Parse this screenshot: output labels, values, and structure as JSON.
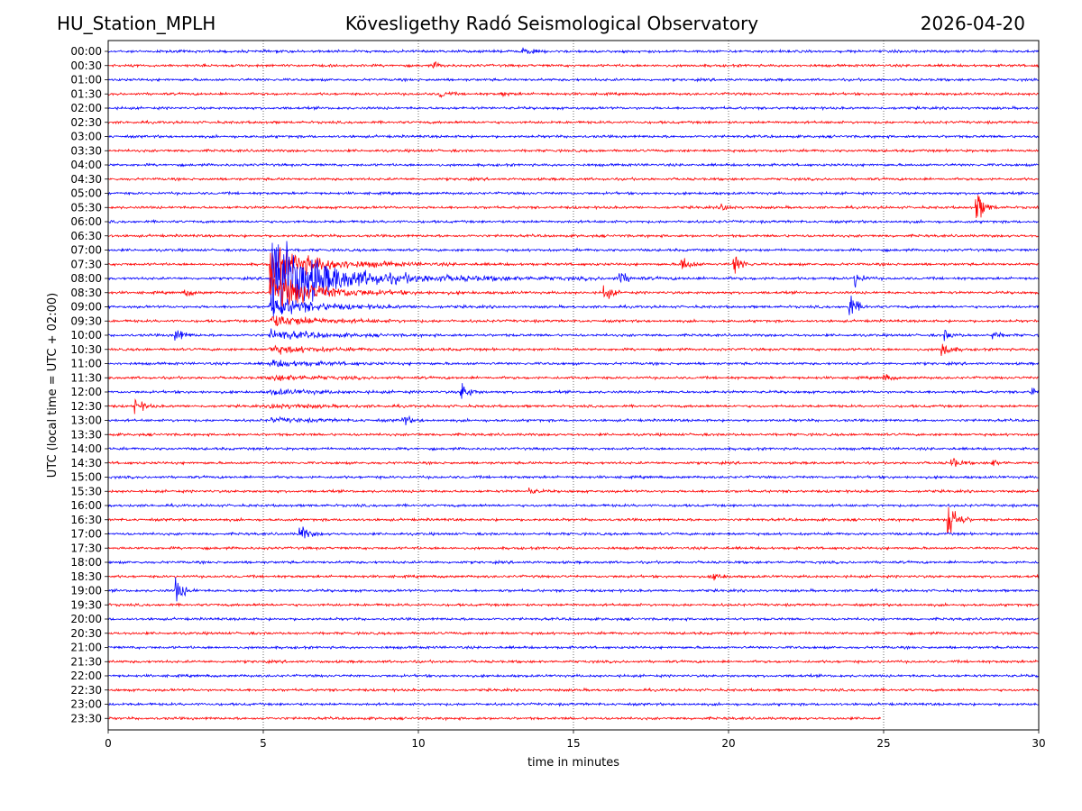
{
  "header": {
    "station": "HU_Station_MPLH",
    "observatory": "Kövesligethy Radó Seismological Observatory",
    "date": "2026-04-20"
  },
  "chart_data": {
    "type": "line",
    "title": "Kövesligethy Radó Seismological Observatory",
    "xlabel": "time in minutes",
    "ylabel": "UTC (local time = UTC + 02:00)",
    "xlim": [
      0,
      30
    ],
    "xticks": [
      0,
      5,
      10,
      15,
      20,
      25,
      30
    ],
    "grid": "vertical dotted lines at 5-minute intervals",
    "colors": {
      "even_rows": "#0000ff",
      "odd_rows": "#ff0000",
      "grid": "#000000"
    },
    "rows": [
      "00:00",
      "00:30",
      "01:00",
      "01:30",
      "02:00",
      "02:30",
      "03:00",
      "03:30",
      "04:00",
      "04:30",
      "05:00",
      "05:30",
      "06:00",
      "06:30",
      "07:00",
      "07:30",
      "08:00",
      "08:30",
      "09:00",
      "09:30",
      "10:00",
      "10:30",
      "11:00",
      "11:30",
      "12:00",
      "12:30",
      "13:00",
      "13:30",
      "14:00",
      "14:30",
      "15:00",
      "15:30",
      "16:00",
      "16:30",
      "17:00",
      "17:30",
      "18:00",
      "18:30",
      "19:00",
      "19:30",
      "20:00",
      "20:30",
      "21:00",
      "21:30",
      "22:00",
      "22:30",
      "23:00",
      "23:30"
    ],
    "last_row_end_minute": 24.9,
    "major_event": {
      "row": "08:00",
      "start_minute": 5.2,
      "coda_until_minute": 12.5,
      "coda_rows": [
        "07:30",
        "08:30",
        "09:00",
        "09:30",
        "10:00",
        "10:30",
        "11:00",
        "11:30",
        "12:00",
        "12:30",
        "13:00"
      ]
    },
    "events": [
      {
        "row": "00:00",
        "minute": 13.4,
        "amp": 0.3
      },
      {
        "row": "00:30",
        "minute": 10.5,
        "amp": 0.25
      },
      {
        "row": "01:30",
        "minute": 10.7,
        "amp": 0.35
      },
      {
        "row": "01:30",
        "minute": 12.7,
        "amp": 0.2
      },
      {
        "row": "05:30",
        "minute": 19.8,
        "amp": 0.3
      },
      {
        "row": "05:30",
        "minute": 28.0,
        "amp": 1.6
      },
      {
        "row": "07:30",
        "minute": 18.5,
        "amp": 0.9
      },
      {
        "row": "07:30",
        "minute": 20.2,
        "amp": 1.0
      },
      {
        "row": "08:00",
        "minute": 16.5,
        "amp": 0.6
      },
      {
        "row": "08:00",
        "minute": 24.1,
        "amp": 0.6
      },
      {
        "row": "08:30",
        "minute": 2.5,
        "amp": 0.35
      },
      {
        "row": "08:30",
        "minute": 16.0,
        "amp": 0.8
      },
      {
        "row": "09:00",
        "minute": 23.9,
        "amp": 1.2
      },
      {
        "row": "10:00",
        "minute": 2.2,
        "amp": 0.7
      },
      {
        "row": "10:00",
        "minute": 27.0,
        "amp": 0.4
      },
      {
        "row": "10:00",
        "minute": 28.5,
        "amp": 0.4
      },
      {
        "row": "10:30",
        "minute": 26.9,
        "amp": 0.8
      },
      {
        "row": "11:30",
        "minute": 25.0,
        "amp": 0.35
      },
      {
        "row": "12:00",
        "minute": 11.4,
        "amp": 0.9
      },
      {
        "row": "12:00",
        "minute": 29.8,
        "amp": 0.6
      },
      {
        "row": "12:30",
        "minute": 0.9,
        "amp": 0.7
      },
      {
        "row": "13:00",
        "minute": 9.5,
        "amp": 0.5
      },
      {
        "row": "14:30",
        "minute": 27.2,
        "amp": 0.5
      },
      {
        "row": "14:30",
        "minute": 28.5,
        "amp": 0.3
      },
      {
        "row": "15:30",
        "minute": 13.6,
        "amp": 0.25
      },
      {
        "row": "16:30",
        "minute": 27.1,
        "amp": 2.5
      },
      {
        "row": "17:00",
        "minute": 6.2,
        "amp": 0.9
      },
      {
        "row": "18:30",
        "minute": 19.5,
        "amp": 0.4
      },
      {
        "row": "19:00",
        "minute": 2.2,
        "amp": 1.1
      }
    ]
  }
}
